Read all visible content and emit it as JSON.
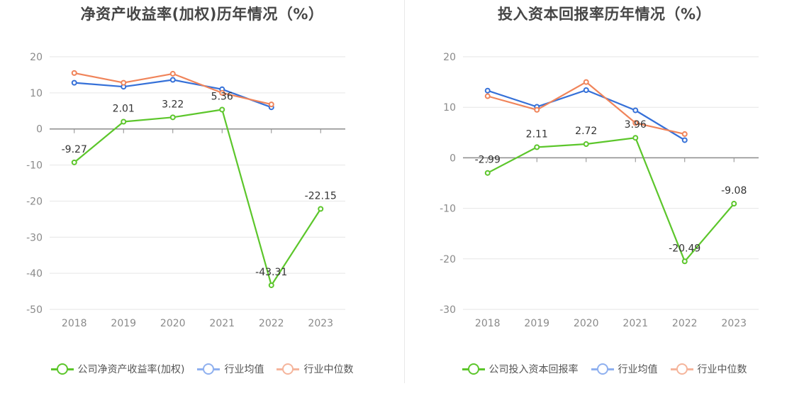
{
  "chart_data": [
    {
      "type": "line",
      "title": "净资产收益率(加权)历年情况（%）",
      "categories": [
        "2018",
        "2019",
        "2020",
        "2021",
        "2022",
        "2023"
      ],
      "ylim": [
        -50,
        20
      ],
      "yticks": [
        20,
        10,
        0,
        -10,
        -20,
        -30,
        -40,
        -50
      ],
      "grid": true,
      "legend_position": "bottom",
      "series": [
        {
          "name": "公司净资产收益率(加权)",
          "color": "#5cc62b",
          "values": [
            -9.27,
            2.01,
            3.22,
            5.36,
            -43.31,
            -22.15
          ],
          "labels": [
            "-9.27",
            "2.01",
            "3.22",
            "5.36",
            "-43.31",
            "-22.15"
          ]
        },
        {
          "name": "行业均值",
          "color": "#3570d8",
          "legend_color": "#8fb0ef",
          "values": [
            12.8,
            11.7,
            13.6,
            11.0,
            6.0,
            null
          ]
        },
        {
          "name": "行业中位数",
          "color": "#f0845a",
          "legend_color": "#f5b59c",
          "values": [
            15.5,
            12.8,
            15.3,
            10.0,
            6.8,
            null
          ]
        }
      ]
    },
    {
      "type": "line",
      "title": "投入资本回报率历年情况（%）",
      "categories": [
        "2018",
        "2019",
        "2020",
        "2021",
        "2022",
        "2023"
      ],
      "ylim": [
        -30,
        20
      ],
      "yticks": [
        20,
        10,
        0,
        -10,
        -20,
        -30
      ],
      "grid": true,
      "legend_position": "bottom",
      "series": [
        {
          "name": "公司投入资本回报率",
          "color": "#5cc62b",
          "values": [
            -2.99,
            2.11,
            2.72,
            3.96,
            -20.49,
            -9.08
          ],
          "labels": [
            "-2.99",
            "2.11",
            "2.72",
            "3.96",
            "-20.49",
            "-9.08"
          ]
        },
        {
          "name": "行业均值",
          "color": "#3570d8",
          "legend_color": "#8fb0ef",
          "values": [
            13.3,
            10.1,
            13.4,
            9.4,
            3.5,
            null
          ]
        },
        {
          "name": "行业中位数",
          "color": "#f0845a",
          "legend_color": "#f5b59c",
          "values": [
            12.2,
            9.5,
            15.0,
            6.9,
            4.7,
            null
          ]
        }
      ]
    }
  ]
}
